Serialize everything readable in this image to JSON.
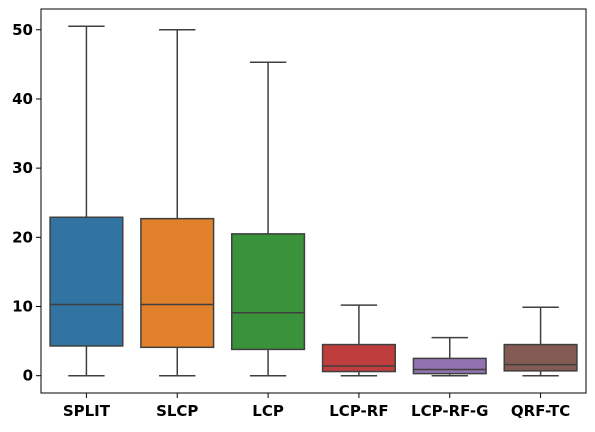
{
  "chart_data": {
    "type": "box",
    "title": "",
    "xlabel": "",
    "ylabel": "",
    "ylim": [
      -2.5,
      53
    ],
    "yticks": [
      0,
      10,
      20,
      30,
      40,
      50
    ],
    "ytick_labels": [
      "0",
      "10",
      "20",
      "30",
      "40",
      "50"
    ],
    "grid": false,
    "categories": [
      "SPLIT",
      "SLCP",
      "LCP",
      "LCP-RF",
      "LCP-RF-G",
      "QRF-TC"
    ],
    "boxes": [
      {
        "category": "SPLIT",
        "color": "#3274a1",
        "whisker_low": 0.0,
        "q1": 4.3,
        "median": 10.3,
        "q3": 22.9,
        "whisker_high": 50.5
      },
      {
        "category": "SLCP",
        "color": "#e1812c",
        "whisker_low": 0.0,
        "q1": 4.1,
        "median": 10.3,
        "q3": 22.7,
        "whisker_high": 50.0
      },
      {
        "category": "LCP",
        "color": "#3a923a",
        "whisker_low": 0.0,
        "q1": 3.8,
        "median": 9.1,
        "q3": 20.5,
        "whisker_high": 45.3
      },
      {
        "category": "LCP-RF",
        "color": "#c03d3e",
        "whisker_low": 0.0,
        "q1": 0.6,
        "median": 1.4,
        "q3": 4.5,
        "whisker_high": 10.2
      },
      {
        "category": "LCP-RF-G",
        "color": "#9372b2",
        "whisker_low": 0.0,
        "q1": 0.3,
        "median": 0.9,
        "q3": 2.5,
        "whisker_high": 5.5
      },
      {
        "category": "QRF-TC",
        "color": "#845b53",
        "whisker_low": 0.0,
        "q1": 0.7,
        "median": 1.6,
        "q3": 4.5,
        "whisker_high": 9.9
      }
    ]
  }
}
